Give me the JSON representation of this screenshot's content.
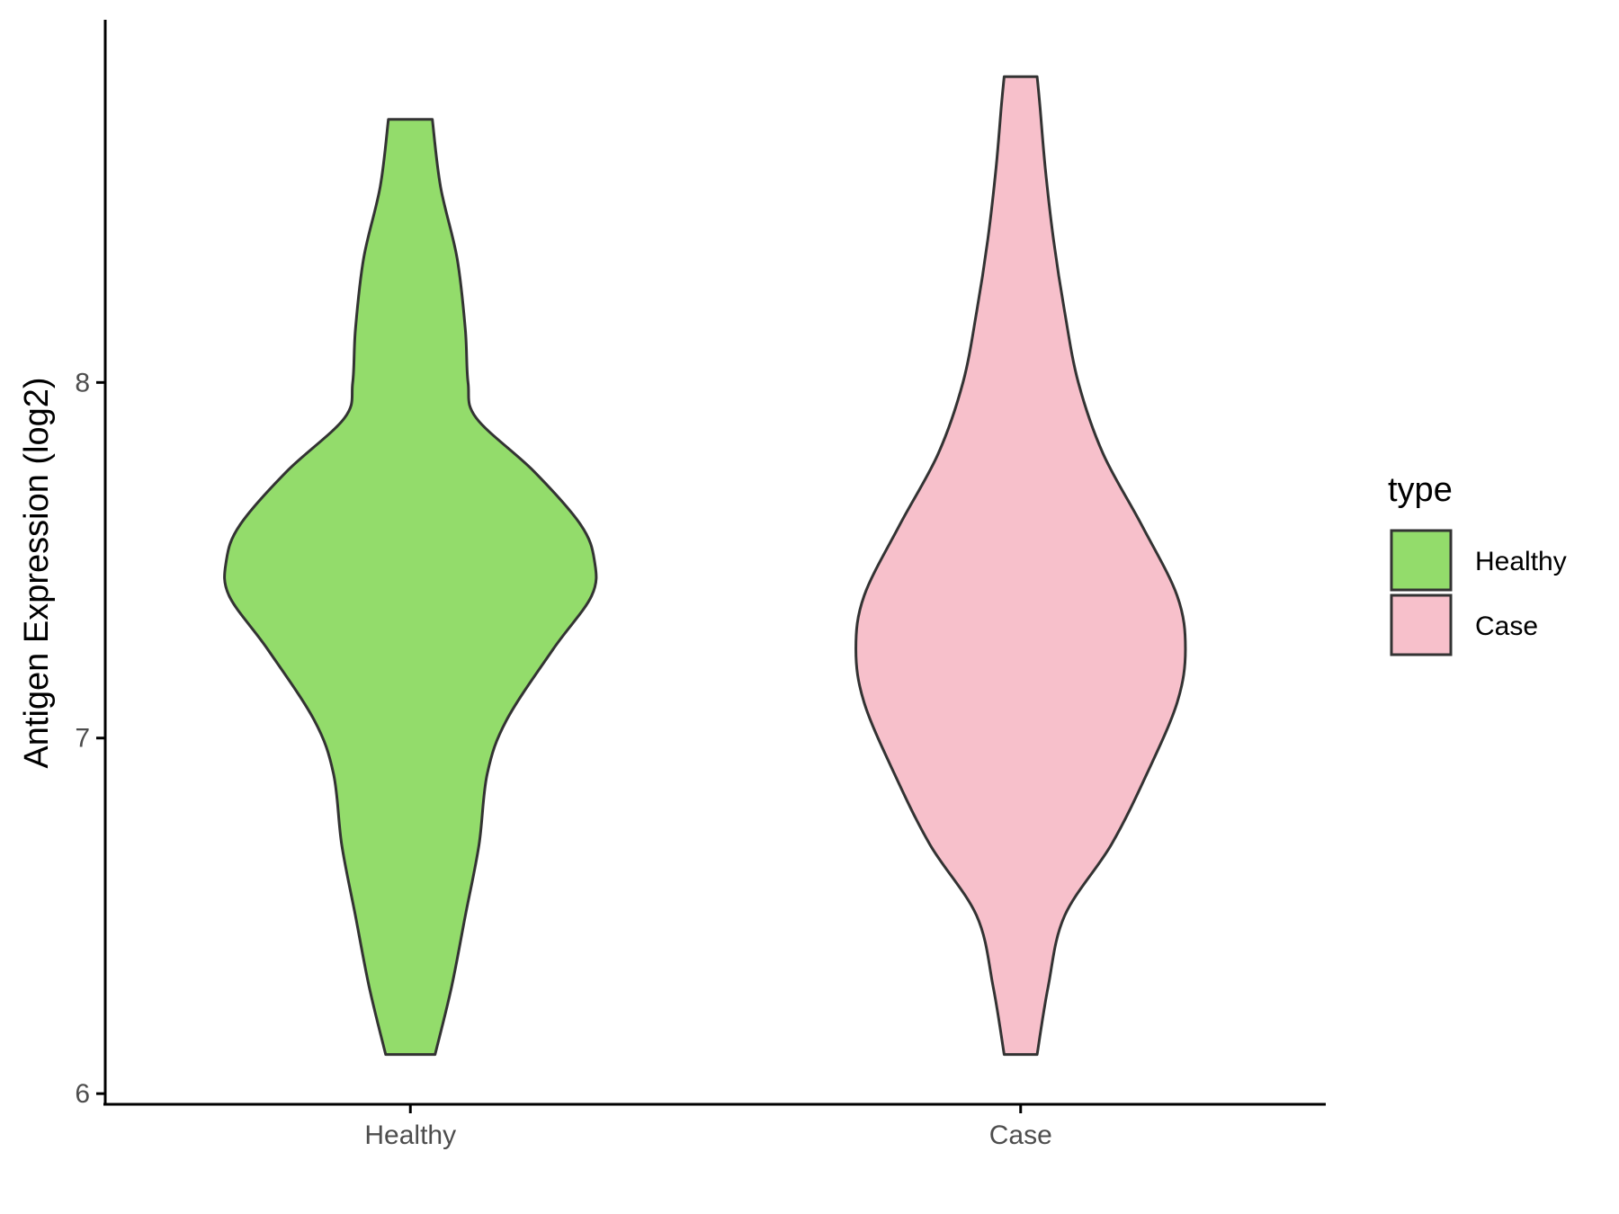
{
  "chart_data": {
    "type": "violin",
    "ylabel": "Antigen Expression (log2)",
    "xlabel": "",
    "ylim": [
      5.97,
      9.02
    ],
    "y_ticks": [
      6,
      7,
      8
    ],
    "categories": [
      "Healthy",
      "Case"
    ],
    "legend": {
      "title": "type",
      "position": "right",
      "entries": [
        "Healthy",
        "Case"
      ]
    },
    "grid": false,
    "colors": {
      "Healthy": "#93DC6B",
      "Case": "#F7C0CB",
      "outline": "#333333",
      "axis": "#000000"
    },
    "series": [
      {
        "category": "Healthy",
        "y_min": 6.11,
        "y_max": 8.74,
        "density_profile": [
          [
            6.11,
            0.09
          ],
          [
            6.3,
            0.15
          ],
          [
            6.5,
            0.2
          ],
          [
            6.7,
            0.25
          ],
          [
            6.9,
            0.28
          ],
          [
            7.05,
            0.35
          ],
          [
            7.25,
            0.52
          ],
          [
            7.4,
            0.66
          ],
          [
            7.5,
            0.67
          ],
          [
            7.6,
            0.62
          ],
          [
            7.75,
            0.45
          ],
          [
            7.9,
            0.24
          ],
          [
            8.0,
            0.21
          ],
          [
            8.15,
            0.2
          ],
          [
            8.35,
            0.17
          ],
          [
            8.55,
            0.11
          ],
          [
            8.74,
            0.08
          ]
        ]
      },
      {
        "category": "Case",
        "y_min": 6.11,
        "y_max": 8.86,
        "density_profile": [
          [
            6.11,
            0.06
          ],
          [
            6.3,
            0.1
          ],
          [
            6.5,
            0.16
          ],
          [
            6.7,
            0.33
          ],
          [
            6.9,
            0.46
          ],
          [
            7.1,
            0.57
          ],
          [
            7.25,
            0.6
          ],
          [
            7.4,
            0.57
          ],
          [
            7.6,
            0.44
          ],
          [
            7.8,
            0.3
          ],
          [
            8.0,
            0.21
          ],
          [
            8.2,
            0.16
          ],
          [
            8.4,
            0.12
          ],
          [
            8.6,
            0.09
          ],
          [
            8.78,
            0.07
          ],
          [
            8.86,
            0.06
          ]
        ]
      }
    ]
  }
}
